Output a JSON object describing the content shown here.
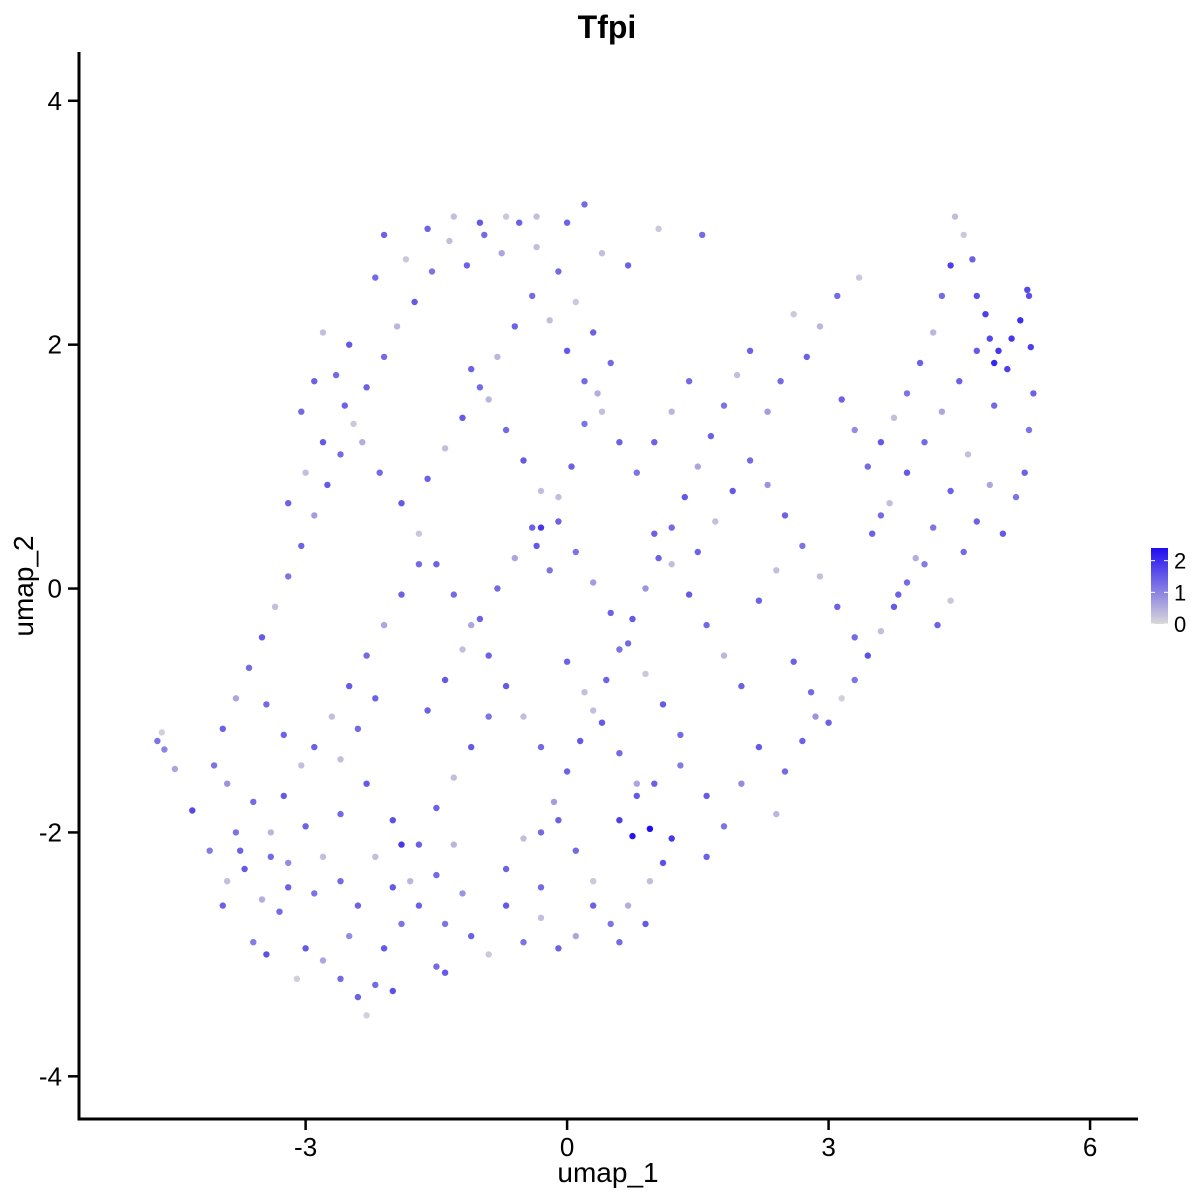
{
  "chart_data": {
    "type": "scatter",
    "title": "Tfpi",
    "xlabel": "umap_1",
    "ylabel": "umap_2",
    "xlim": [
      -5.6,
      6.55
    ],
    "ylim": [
      -4.35,
      4.4
    ],
    "x_ticks": [
      -3,
      0,
      3,
      6
    ],
    "y_ticks": [
      -4,
      -2,
      0,
      2,
      4
    ],
    "grid": false,
    "legend": {
      "placement": "right",
      "ticks": [
        2,
        1,
        0
      ],
      "low_color": "#d9d9d9",
      "high_color": "#1f0cf0",
      "range": [
        0,
        2.4
      ]
    },
    "colors": {
      "low": "#d9d9d9",
      "high": "#1f0cf0"
    },
    "points": [
      [
        -4.7,
        -1.25,
        1.2
      ],
      [
        -4.65,
        -1.18,
        0.1
      ],
      [
        -4.62,
        -1.32,
        1.0
      ],
      [
        -4.5,
        -1.48,
        0.6
      ],
      [
        -4.3,
        -1.82,
        1.7
      ],
      [
        -4.1,
        -2.15,
        1.1
      ],
      [
        -4.05,
        -1.45,
        1.2
      ],
      [
        -3.95,
        -2.6,
        1.4
      ],
      [
        -3.9,
        -1.6,
        0.8
      ],
      [
        -3.8,
        -2.0,
        1.2
      ],
      [
        -3.7,
        -2.3,
        1.5
      ],
      [
        -3.6,
        -2.9,
        1.1
      ],
      [
        -3.5,
        -2.55,
        0.5
      ],
      [
        -3.45,
        -3.0,
        1.6
      ],
      [
        -3.3,
        -2.65,
        1.3
      ],
      [
        -3.2,
        -2.25,
        0.9
      ],
      [
        -3.1,
        -3.2,
        0.1
      ],
      [
        -3.0,
        -2.95,
        1.5
      ],
      [
        -2.9,
        -2.5,
        1.2
      ],
      [
        -2.8,
        -3.05,
        0.6
      ],
      [
        -2.6,
        -3.2,
        1.3
      ],
      [
        -2.5,
        -2.85,
        0.9
      ],
      [
        -2.4,
        -3.35,
        1.4
      ],
      [
        -2.3,
        -3.5,
        0.1
      ],
      [
        -2.2,
        -3.25,
        1.3
      ],
      [
        -2.1,
        -2.95,
        1.5
      ],
      [
        -2.0,
        -3.3,
        1.6
      ],
      [
        -1.9,
        -2.75,
        1.2
      ],
      [
        -1.8,
        -2.4,
        0.4
      ],
      [
        -1.7,
        -2.1,
        1.4
      ],
      [
        -1.5,
        -3.1,
        1.3
      ],
      [
        -1.4,
        -2.75,
        1.2
      ],
      [
        -1.4,
        -3.15,
        1.5
      ],
      [
        -1.2,
        -2.5,
        0.8
      ],
      [
        -1.1,
        -2.85,
        1.4
      ],
      [
        -0.9,
        -3.0,
        0.2
      ],
      [
        -0.7,
        -2.6,
        1.5
      ],
      [
        -0.5,
        -2.9,
        1.2
      ],
      [
        -0.3,
        -2.7,
        0.3
      ],
      [
        -0.1,
        -2.95,
        1.4
      ],
      [
        0.1,
        -2.85,
        0.6
      ],
      [
        0.3,
        -2.6,
        1.4
      ],
      [
        0.5,
        -2.75,
        1.2
      ],
      [
        0.6,
        -2.9,
        1.3
      ],
      [
        0.7,
        -2.6,
        0.5
      ],
      [
        0.9,
        -2.75,
        1.5
      ],
      [
        0.95,
        -2.4,
        0.3
      ],
      [
        1.1,
        -2.25,
        1.6
      ],
      [
        1.2,
        -2.05,
        1.9
      ],
      [
        0.75,
        -2.03,
        2.3
      ],
      [
        0.95,
        -1.97,
        2.4
      ],
      [
        0.6,
        -1.9,
        1.8
      ],
      [
        0.8,
        -1.7,
        1.5
      ],
      [
        1.0,
        -1.6,
        1.4
      ],
      [
        1.3,
        -1.45,
        1.1
      ],
      [
        1.6,
        -1.7,
        1.5
      ],
      [
        1.8,
        -1.95,
        1.2
      ],
      [
        1.6,
        -2.2,
        1.4
      ],
      [
        2.0,
        -1.6,
        0.9
      ],
      [
        2.2,
        -1.3,
        1.5
      ],
      [
        2.4,
        -1.85,
        0.4
      ],
      [
        2.5,
        -1.5,
        1.3
      ],
      [
        2.7,
        -1.25,
        1.4
      ],
      [
        2.85,
        -1.05,
        0.8
      ],
      [
        3.0,
        -1.1,
        1.4
      ],
      [
        3.15,
        -0.9,
        0.1
      ],
      [
        3.3,
        -0.75,
        1.2
      ],
      [
        3.45,
        -0.55,
        1.6
      ],
      [
        3.6,
        -0.35,
        0.3
      ],
      [
        3.75,
        -0.15,
        1.5
      ],
      [
        3.9,
        0.05,
        1.3
      ],
      [
        4.1,
        0.2,
        1.1
      ],
      [
        4.25,
        -0.3,
        1.4
      ],
      [
        4.4,
        -0.1,
        0.2
      ],
      [
        4.55,
        0.3,
        1.3
      ],
      [
        4.7,
        0.55,
        1.4
      ],
      [
        4.85,
        0.85,
        0.6
      ],
      [
        5.0,
        0.45,
        1.5
      ],
      [
        5.15,
        0.75,
        1.2
      ],
      [
        5.25,
        0.95,
        1.4
      ],
      [
        5.3,
        1.3,
        1.2
      ],
      [
        5.35,
        1.6,
        1.4
      ],
      [
        5.32,
        1.98,
        1.8
      ],
      [
        5.3,
        2.4,
        1.6
      ],
      [
        5.28,
        2.45,
        1.7
      ],
      [
        5.2,
        2.2,
        2.0
      ],
      [
        5.1,
        2.05,
        1.9
      ],
      [
        5.05,
        1.8,
        1.8
      ],
      [
        4.95,
        1.95,
        1.9
      ],
      [
        4.9,
        1.85,
        2.1
      ],
      [
        4.85,
        2.05,
        1.7
      ],
      [
        4.8,
        2.25,
        1.8
      ],
      [
        4.7,
        2.4,
        1.6
      ],
      [
        4.65,
        2.7,
        1.4
      ],
      [
        4.55,
        2.9,
        0.2
      ],
      [
        4.45,
        3.05,
        0.3
      ],
      [
        4.4,
        2.65,
        1.8
      ],
      [
        4.3,
        2.4,
        1.3
      ],
      [
        4.2,
        2.1,
        0.4
      ],
      [
        4.05,
        1.85,
        1.4
      ],
      [
        3.9,
        1.6,
        1.2
      ],
      [
        3.75,
        1.4,
        0.3
      ],
      [
        3.6,
        1.2,
        1.5
      ],
      [
        3.45,
        1.0,
        1.3
      ],
      [
        3.3,
        1.3,
        0.9
      ],
      [
        3.15,
        1.55,
        1.4
      ],
      [
        3.35,
        2.55,
        0.2
      ],
      [
        3.1,
        2.4,
        1.3
      ],
      [
        2.9,
        2.15,
        0.4
      ],
      [
        2.75,
        1.9,
        1.4
      ],
      [
        2.6,
        2.25,
        0.2
      ],
      [
        2.45,
        1.7,
        1.3
      ],
      [
        2.3,
        1.45,
        0.7
      ],
      [
        2.1,
        1.95,
        1.4
      ],
      [
        1.95,
        1.75,
        0.3
      ],
      [
        1.8,
        1.5,
        1.2
      ],
      [
        1.65,
        1.25,
        1.4
      ],
      [
        1.5,
        1.0,
        0.6
      ],
      [
        1.35,
        0.75,
        1.5
      ],
      [
        1.2,
        0.5,
        1.3
      ],
      [
        1.05,
        0.25,
        1.4
      ],
      [
        0.9,
        0.0,
        0.8
      ],
      [
        0.75,
        -0.25,
        1.5
      ],
      [
        0.6,
        -0.5,
        1.2
      ],
      [
        0.45,
        -0.75,
        1.4
      ],
      [
        0.3,
        -1.0,
        0.3
      ],
      [
        0.15,
        -1.25,
        1.5
      ],
      [
        0.0,
        -1.5,
        1.4
      ],
      [
        -0.15,
        -1.75,
        0.7
      ],
      [
        -0.3,
        -2.0,
        1.3
      ],
      [
        -0.3,
        0.5,
        1.9
      ],
      [
        -0.35,
        0.35,
        1.5
      ],
      [
        -0.2,
        0.15,
        1.2
      ],
      [
        -0.1,
        0.75,
        0.3
      ],
      [
        0.05,
        1.0,
        1.4
      ],
      [
        0.2,
        1.35,
        1.2
      ],
      [
        0.35,
        1.6,
        0.5
      ],
      [
        0.5,
        1.85,
        1.3
      ],
      [
        0.3,
        2.1,
        1.4
      ],
      [
        0.1,
        2.35,
        0.2
      ],
      [
        -0.1,
        2.6,
        1.3
      ],
      [
        -0.35,
        2.8,
        0.3
      ],
      [
        -0.55,
        3.0,
        1.4
      ],
      [
        -0.75,
        2.75,
        0.6
      ],
      [
        -0.95,
        2.9,
        1.3
      ],
      [
        -1.15,
        2.65,
        1.4
      ],
      [
        -1.35,
        2.85,
        0.3
      ],
      [
        -1.55,
        2.6,
        1.2
      ],
      [
        -1.75,
        2.35,
        1.5
      ],
      [
        -1.95,
        2.15,
        0.4
      ],
      [
        -2.1,
        1.9,
        1.3
      ],
      [
        -2.3,
        1.65,
        1.4
      ],
      [
        -2.45,
        1.35,
        0.2
      ],
      [
        -2.6,
        1.1,
        1.3
      ],
      [
        -2.75,
        0.85,
        1.5
      ],
      [
        -2.9,
        0.6,
        0.7
      ],
      [
        -3.05,
        0.35,
        1.4
      ],
      [
        -3.2,
        0.1,
        1.2
      ],
      [
        -3.35,
        -0.15,
        0.3
      ],
      [
        -3.5,
        -0.4,
        1.5
      ],
      [
        -3.65,
        -0.65,
        1.3
      ],
      [
        -3.8,
        -0.9,
        0.6
      ],
      [
        -3.95,
        -1.15,
        1.4
      ],
      [
        -2.1,
        2.9,
        1.4
      ],
      [
        -2.2,
        2.55,
        1.3
      ],
      [
        -1.85,
        2.7,
        0.2
      ],
      [
        -1.6,
        2.95,
        1.4
      ],
      [
        -1.3,
        3.05,
        0.3
      ],
      [
        -1.0,
        3.0,
        1.5
      ],
      [
        -0.7,
        3.05,
        0.2
      ],
      [
        -0.35,
        3.05,
        0.3
      ],
      [
        0.0,
        3.0,
        1.4
      ],
      [
        0.2,
        3.15,
        1.3
      ],
      [
        0.4,
        2.75,
        0.3
      ],
      [
        0.7,
        2.65,
        1.4
      ],
      [
        1.05,
        2.95,
        0.2
      ],
      [
        1.55,
        2.9,
        1.3
      ],
      [
        -2.5,
        2.0,
        1.5
      ],
      [
        -2.65,
        1.75,
        1.3
      ],
      [
        -2.8,
        2.1,
        0.3
      ],
      [
        -2.55,
        1.5,
        1.4
      ],
      [
        -2.35,
        1.2,
        0.5
      ],
      [
        -2.15,
        0.95,
        1.3
      ],
      [
        -1.9,
        0.7,
        1.5
      ],
      [
        -1.7,
        0.45,
        0.2
      ],
      [
        -1.5,
        0.2,
        1.4
      ],
      [
        -1.3,
        -0.05,
        1.3
      ],
      [
        -1.1,
        -0.3,
        0.6
      ],
      [
        -0.9,
        -0.55,
        1.4
      ],
      [
        -0.7,
        -0.8,
        1.5
      ],
      [
        -0.5,
        -1.05,
        0.3
      ],
      [
        -0.3,
        -1.3,
        1.3
      ],
      [
        -1.1,
        1.8,
        1.4
      ],
      [
        -0.9,
        1.55,
        0.4
      ],
      [
        -0.7,
        1.3,
        1.3
      ],
      [
        -0.5,
        1.05,
        1.5
      ],
      [
        -0.3,
        0.8,
        0.3
      ],
      [
        -0.1,
        0.55,
        1.4
      ],
      [
        0.1,
        0.3,
        1.2
      ],
      [
        0.3,
        0.05,
        0.7
      ],
      [
        0.5,
        -0.2,
        1.4
      ],
      [
        0.7,
        -0.45,
        1.3
      ],
      [
        0.9,
        -0.7,
        0.2
      ],
      [
        1.1,
        -0.95,
        1.5
      ],
      [
        1.3,
        -1.2,
        1.3
      ],
      [
        1.5,
        0.3,
        1.4
      ],
      [
        1.7,
        0.55,
        0.3
      ],
      [
        1.9,
        0.8,
        1.5
      ],
      [
        2.1,
        1.05,
        1.3
      ],
      [
        2.3,
        0.85,
        0.8
      ],
      [
        2.5,
        0.6,
        1.4
      ],
      [
        2.7,
        0.35,
        1.2
      ],
      [
        2.9,
        0.1,
        0.3
      ],
      [
        3.1,
        -0.15,
        1.4
      ],
      [
        3.3,
        -0.4,
        1.3
      ],
      [
        3.5,
        0.45,
        1.4
      ],
      [
        3.7,
        0.7,
        0.3
      ],
      [
        3.9,
        0.95,
        1.5
      ],
      [
        4.1,
        1.2,
        1.3
      ],
      [
        4.3,
        1.45,
        0.6
      ],
      [
        4.5,
        1.7,
        1.4
      ],
      [
        4.7,
        1.95,
        1.5
      ],
      [
        4.9,
        1.5,
        1.3
      ],
      [
        4.6,
        1.1,
        0.3
      ],
      [
        4.4,
        0.8,
        1.4
      ],
      [
        4.2,
        0.5,
        1.2
      ],
      [
        4.0,
        0.25,
        0.5
      ],
      [
        3.8,
        -0.05,
        1.4
      ],
      [
        3.6,
        0.6,
        1.3
      ],
      [
        2.0,
        -0.8,
        1.4
      ],
      [
        1.8,
        -0.55,
        0.4
      ],
      [
        1.6,
        -0.3,
        1.3
      ],
      [
        1.4,
        -0.05,
        1.5
      ],
      [
        1.2,
        0.2,
        0.3
      ],
      [
        1.0,
        0.45,
        1.4
      ],
      [
        -2.9,
        -1.3,
        1.4
      ],
      [
        -2.7,
        -1.05,
        0.3
      ],
      [
        -2.5,
        -0.8,
        1.5
      ],
      [
        -2.3,
        -0.55,
        1.3
      ],
      [
        -2.1,
        -0.3,
        0.6
      ],
      [
        -1.9,
        -0.05,
        1.4
      ],
      [
        -1.7,
        0.2,
        1.3
      ],
      [
        -1.5,
        -1.8,
        1.4
      ],
      [
        -1.3,
        -1.55,
        0.3
      ],
      [
        -1.1,
        -1.3,
        1.5
      ],
      [
        -0.9,
        -1.05,
        1.2
      ],
      [
        -0.7,
        -2.3,
        1.4
      ],
      [
        -0.5,
        -2.05,
        0.3
      ],
      [
        -0.3,
        -2.45,
        1.3
      ],
      [
        -1.9,
        -2.1,
        1.9
      ],
      [
        -2.0,
        -1.9,
        1.6
      ],
      [
        -2.3,
        -1.6,
        1.5
      ],
      [
        -2.6,
        -1.85,
        1.3
      ],
      [
        -2.8,
        -2.2,
        0.3
      ],
      [
        -3.0,
        -1.95,
        1.4
      ],
      [
        -3.25,
        -1.7,
        1.5
      ],
      [
        -3.4,
        -2.0,
        0.4
      ],
      [
        -3.6,
        -1.75,
        1.3
      ],
      [
        -3.75,
        -2.15,
        1.4
      ],
      [
        -3.9,
        -2.4,
        0.3
      ],
      [
        -2.2,
        -0.9,
        1.4
      ],
      [
        -2.4,
        -1.15,
        1.3
      ],
      [
        -2.6,
        -1.4,
        0.3
      ],
      [
        -1.6,
        -1.0,
        1.4
      ],
      [
        -1.4,
        -0.75,
        1.5
      ],
      [
        -1.2,
        -0.5,
        0.3
      ],
      [
        -1.0,
        -0.25,
        1.4
      ],
      [
        -0.8,
        0.0,
        1.3
      ],
      [
        -0.6,
        0.25,
        0.6
      ],
      [
        -0.4,
        0.5,
        1.4
      ],
      [
        -1.6,
        0.9,
        1.4
      ],
      [
        -1.4,
        1.15,
        0.3
      ],
      [
        -1.2,
        1.4,
        1.5
      ],
      [
        -1.0,
        1.65,
        1.3
      ],
      [
        -0.8,
        1.9,
        0.4
      ],
      [
        -0.6,
        2.15,
        1.4
      ],
      [
        -0.4,
        2.4,
        1.3
      ],
      [
        -0.2,
        2.2,
        0.3
      ],
      [
        0.0,
        1.95,
        1.5
      ],
      [
        0.2,
        1.7,
        1.3
      ],
      [
        0.4,
        1.45,
        0.3
      ],
      [
        0.6,
        1.2,
        1.4
      ],
      [
        0.8,
        0.95,
        1.2
      ],
      [
        1.0,
        1.2,
        1.4
      ],
      [
        1.2,
        1.45,
        0.4
      ],
      [
        1.4,
        1.7,
        1.3
      ],
      [
        2.2,
        -0.1,
        1.4
      ],
      [
        2.4,
        0.15,
        0.3
      ],
      [
        2.6,
        -0.6,
        1.4
      ],
      [
        2.8,
        -0.85,
        1.3
      ],
      [
        0.0,
        -0.6,
        1.4
      ],
      [
        0.2,
        -0.85,
        0.3
      ],
      [
        0.4,
        -1.1,
        1.5
      ],
      [
        0.6,
        -1.35,
        1.3
      ],
      [
        0.8,
        -1.6,
        0.6
      ],
      [
        -0.1,
        -1.9,
        1.4
      ],
      [
        0.1,
        -2.15,
        1.3
      ],
      [
        0.3,
        -2.4,
        0.2
      ],
      [
        -1.7,
        -2.6,
        1.4
      ],
      [
        -1.5,
        -2.35,
        1.3
      ],
      [
        -1.3,
        -2.1,
        0.4
      ],
      [
        -2.4,
        -2.6,
        1.4
      ],
      [
        -2.6,
        -2.4,
        1.3
      ],
      [
        -2.2,
        -2.2,
        0.3
      ],
      [
        -2.0,
        -2.45,
        1.5
      ],
      [
        -3.2,
        -2.45,
        1.4
      ],
      [
        -3.4,
        -2.2,
        1.3
      ],
      [
        -3.05,
        -1.45,
        0.3
      ],
      [
        -3.25,
        -1.2,
        1.4
      ],
      [
        -3.45,
        -0.95,
        1.3
      ],
      [
        -3.2,
        0.7,
        1.4
      ],
      [
        -3.0,
        0.95,
        0.3
      ],
      [
        -2.8,
        1.2,
        1.5
      ],
      [
        -3.05,
        1.45,
        1.3
      ],
      [
        -2.9,
        1.7,
        1.4
      ]
    ]
  }
}
